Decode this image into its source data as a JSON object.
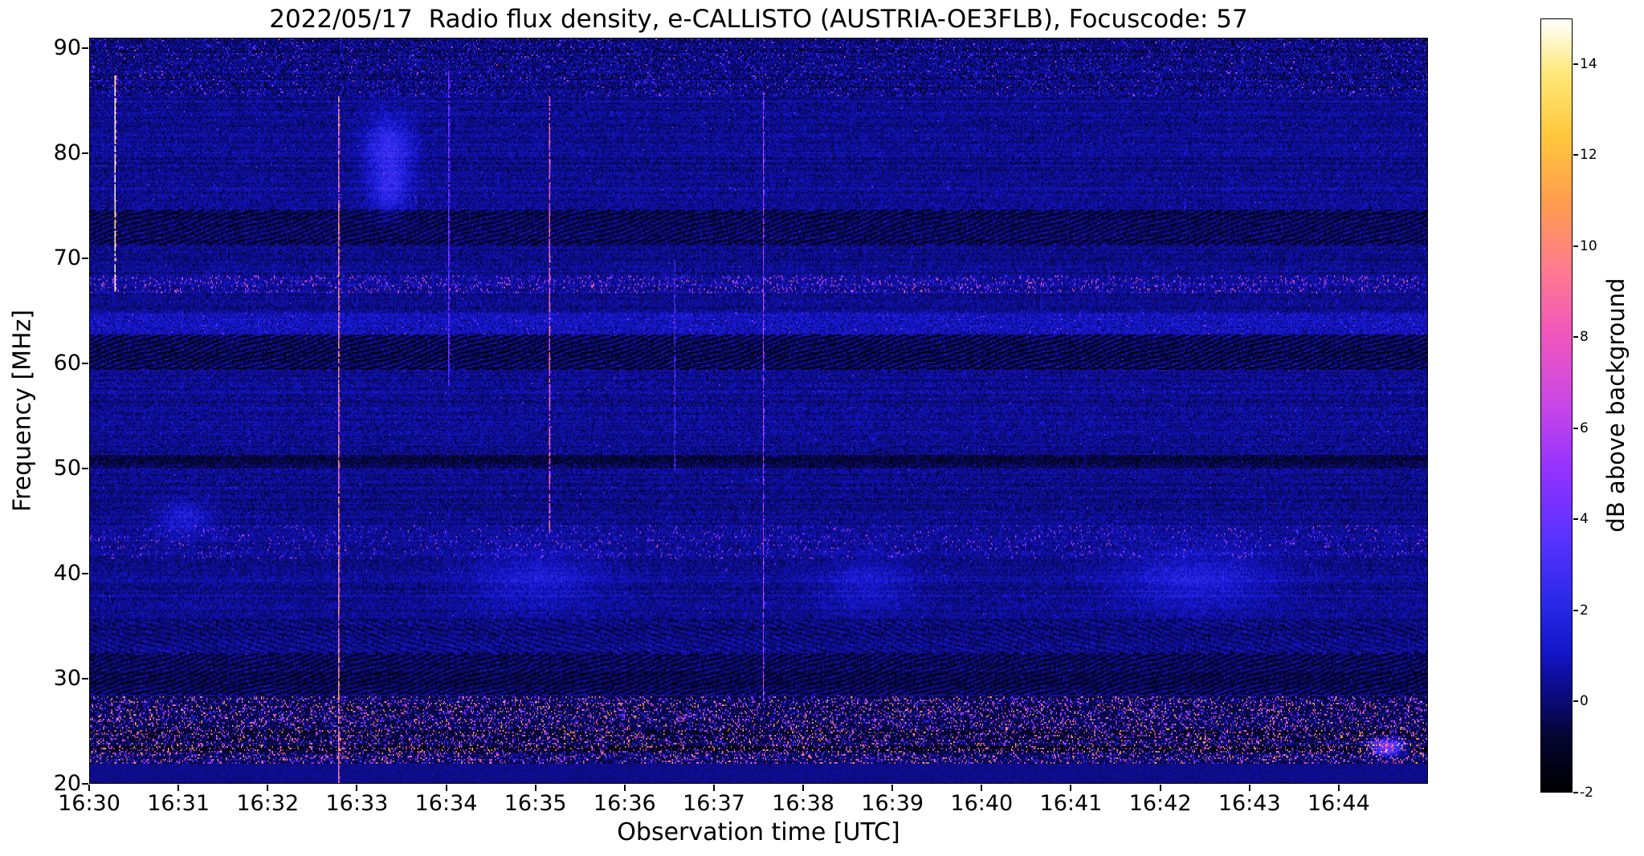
{
  "chart_data": {
    "type": "heatmap",
    "title": "2022/05/17  Radio flux density, e-CALLISTO (AUSTRIA-OE3FLB), Focuscode: 57",
    "xlabel": "Observation time [UTC]",
    "ylabel": "Frequency [MHz]",
    "x_ticks": [
      "16:30",
      "16:31",
      "16:32",
      "16:33",
      "16:34",
      "16:35",
      "16:36",
      "16:37",
      "16:38",
      "16:39",
      "16:40",
      "16:41",
      "16:42",
      "16:43",
      "16:44"
    ],
    "x_span_minutes": 15,
    "y_ticks": [
      90,
      80,
      70,
      60,
      50,
      40,
      30,
      20
    ],
    "y_range": [
      20,
      91
    ],
    "colorbar": {
      "label": "dB above background",
      "ticks": [
        -2,
        0,
        2,
        4,
        6,
        8,
        10,
        12,
        14
      ],
      "range": [
        -2,
        15
      ],
      "stops": [
        [
          0.0,
          "#000000"
        ],
        [
          0.07,
          "#050530"
        ],
        [
          0.12,
          "#0a0a78"
        ],
        [
          0.18,
          "#1414c8"
        ],
        [
          0.24,
          "#2828e6"
        ],
        [
          0.33,
          "#5a32ff"
        ],
        [
          0.42,
          "#9632ff"
        ],
        [
          0.5,
          "#c846e6"
        ],
        [
          0.59,
          "#f055be"
        ],
        [
          0.68,
          "#ff7d8c"
        ],
        [
          0.76,
          "#ff9b50"
        ],
        [
          0.85,
          "#ffc83c"
        ],
        [
          0.93,
          "#ffe878"
        ],
        [
          1.0,
          "#ffffff"
        ]
      ]
    },
    "background_db": 0.35,
    "noise_sd_db": 0.45,
    "bands": [
      {
        "f": [
          85.5,
          91.0
        ],
        "type": "noisy",
        "note": "dense speckled noise near top of band"
      },
      {
        "f": [
          71.3,
          74.6
        ],
        "type": "hatch",
        "note": "dark herringbone interference stripe ~72-74 MHz"
      },
      {
        "f": [
          66.7,
          68.4
        ],
        "type": "speckle",
        "p": 0.1,
        "vmin": 3,
        "vmax": 9,
        "note": "persistent RFI speckle row ~67-68 MHz"
      },
      {
        "f": [
          62.8,
          64.9
        ],
        "type": "bright",
        "amp": 0.7,
        "note": "slightly enhanced band ~63-65 MHz"
      },
      {
        "f": [
          59.4,
          62.7
        ],
        "type": "hatch",
        "note": "dark herringbone interference ~60-62 MHz"
      },
      {
        "f": [
          50.1,
          51.3
        ],
        "type": "dark",
        "amp": -0.9,
        "note": "dark speckle row ~50.5 MHz"
      },
      {
        "f": [
          41.4,
          44.6
        ],
        "type": "speckle",
        "p": 0.05,
        "vmin": 2,
        "vmax": 7,
        "note": "RFI speckle rows ~42-44 MHz"
      },
      {
        "f": [
          32.4,
          35.6
        ],
        "type": "hatch_light",
        "note": "faint wavy structure ~33-35 MHz"
      },
      {
        "f": [
          28.4,
          32.4
        ],
        "type": "hatch",
        "note": "dark chevron interference ~29-32 MHz"
      },
      {
        "f": [
          21.8,
          28.2
        ],
        "type": "rfi_strong",
        "p": 0.2,
        "vmin": 2,
        "vmax": 12,
        "note": "strong broadband RFI 22-28 MHz, orange/yellow speckle"
      },
      {
        "f": [
          20.0,
          21.8
        ],
        "type": "quiet",
        "note": "clean blue strip at bottom"
      }
    ],
    "bursts": [
      {
        "t": 0.27,
        "f": [
          67.0,
          87.5
        ],
        "db": 15,
        "note": "short white vertical line just after 16:30"
      },
      {
        "t": 2.78,
        "f": [
          20.0,
          85.5
        ],
        "db": 12,
        "note": "bright full-height vertical burst before 16:33"
      },
      {
        "t": 5.15,
        "f": [
          44.0,
          85.5
        ],
        "db": 10,
        "note": "orange vertical burst just after 16:35"
      },
      {
        "t": 7.55,
        "f": [
          28.0,
          86.0
        ],
        "db": 7.5,
        "note": "fainter vertical burst ~16:37.5"
      },
      {
        "t": 4.02,
        "f": [
          58.0,
          88.0
        ],
        "db": 5,
        "note": "faint line at 16:34"
      },
      {
        "t": 6.55,
        "f": [
          50.0,
          70.0
        ],
        "db": 4.5,
        "note": "faint line ~16:36.5"
      }
    ],
    "blobs": [
      {
        "t": 3.35,
        "f": 80.5,
        "rt": 0.18,
        "rf": 2.2,
        "amp": 2.2
      },
      {
        "t": 3.35,
        "f": 76.5,
        "rt": 0.15,
        "rf": 1.5,
        "amp": 1.6
      },
      {
        "t": 5.0,
        "f": 39.5,
        "rt": 0.5,
        "rf": 2.0,
        "amp": 1.1
      },
      {
        "t": 8.7,
        "f": 39.0,
        "rt": 0.35,
        "rf": 1.8,
        "amp": 1.0
      },
      {
        "t": 12.4,
        "f": 39.5,
        "rt": 0.6,
        "rf": 2.0,
        "amp": 1.3
      },
      {
        "t": 1.05,
        "f": 45.5,
        "rt": 0.2,
        "rf": 1.2,
        "amp": 1.2
      },
      {
        "t": 14.55,
        "f": 23.5,
        "rt": 0.12,
        "rf": 0.5,
        "amp": 6
      }
    ]
  }
}
